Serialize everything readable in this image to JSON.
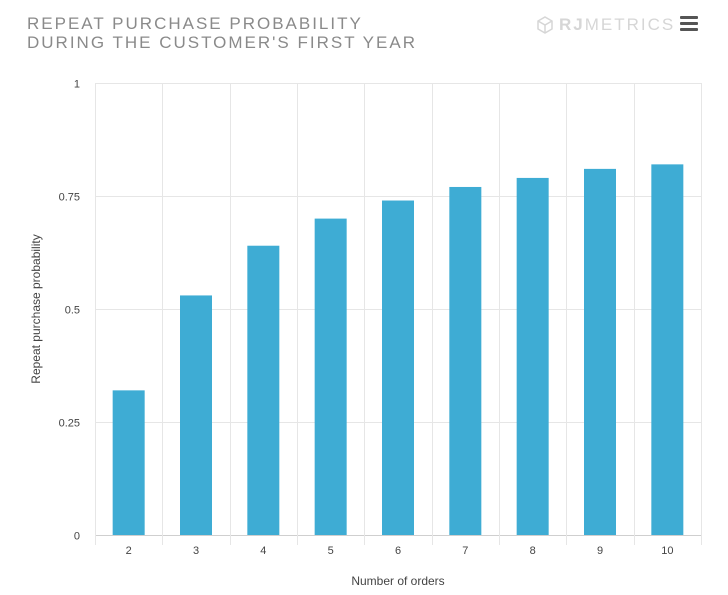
{
  "header": {
    "title_line1": "REPEAT PURCHASE PROBABILITY",
    "title_line2": "DURING THE CUSTOMER'S FIRST YEAR",
    "brand_bold": "RJ",
    "brand_rest": "METRICS",
    "brand_icon": "cube-logo-icon",
    "menu_icon": "hamburger-menu-icon"
  },
  "colors": {
    "bar": "#3eacd4",
    "grid": "#e6e6e6",
    "title": "#8a8a8a"
  },
  "chart_data": {
    "type": "bar",
    "title": "REPEAT PURCHASE PROBABILITY DURING THE CUSTOMER'S FIRST YEAR",
    "xlabel": "Number of orders",
    "ylabel": "Repeat purchase probability",
    "categories": [
      "2",
      "3",
      "4",
      "5",
      "6",
      "7",
      "8",
      "9",
      "10"
    ],
    "values": [
      0.32,
      0.53,
      0.64,
      0.7,
      0.74,
      0.77,
      0.79,
      0.81,
      0.82
    ],
    "ylim": [
      0,
      1
    ],
    "yticks": [
      0,
      0.25,
      0.5,
      0.75,
      1
    ],
    "ytick_labels": [
      "0",
      "0.25",
      "0.5",
      "0.75",
      "1"
    ],
    "grid": true,
    "legend": "none"
  }
}
